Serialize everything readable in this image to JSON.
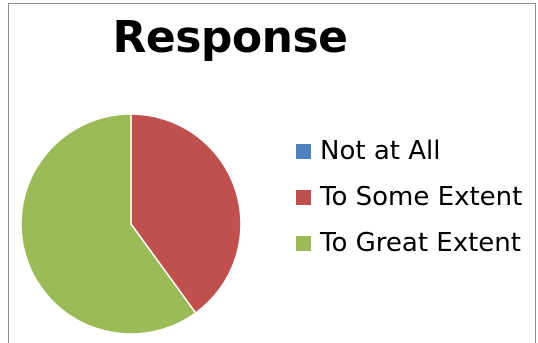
{
  "chart_data": {
    "type": "pie",
    "title": "Response",
    "slices": [
      {
        "label": "Not at All",
        "value": 0,
        "color": "#4f81bd"
      },
      {
        "label": "To Some Extent",
        "value": 40,
        "color": "#c0504d"
      },
      {
        "label": "To Great Extent",
        "value": 60,
        "color": "#9bbb59"
      }
    ],
    "legend_position": "right"
  }
}
